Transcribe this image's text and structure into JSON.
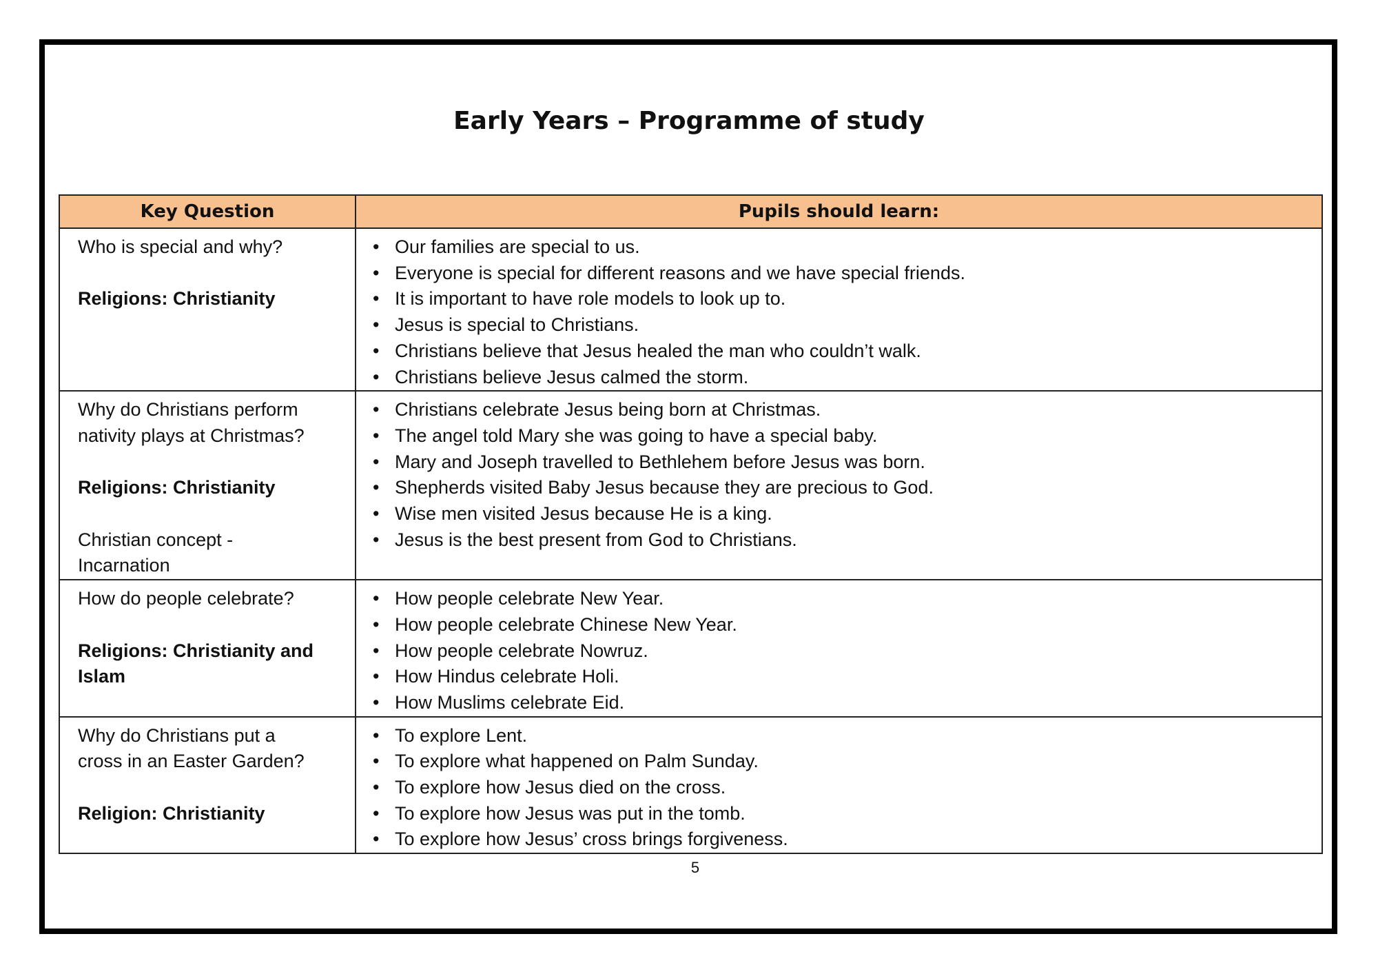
{
  "title": "Early Years – Programme of study",
  "table": {
    "headers": [
      "Key Question",
      "Pupils should learn:"
    ],
    "header_color": "#F8C08F",
    "rows": [
      {
        "question_lines": [
          "Who is special and why?"
        ],
        "religion_lines": [
          "Religions: Christianity"
        ],
        "concept_lines": [],
        "learn": [
          "Our families are special to us.",
          "Everyone is special for different reasons and we have special friends.",
          "It is important to have role models to look up to.",
          "Jesus is special to Christians.",
          "Christians believe that Jesus healed the man who couldn’t walk.",
          "Christians believe Jesus calmed the storm."
        ]
      },
      {
        "question_lines": [
          "Why do Christians perform",
          "nativity plays at Christmas?"
        ],
        "religion_lines": [
          "Religions: Christianity"
        ],
        "concept_lines": [
          "Christian concept -",
          "Incarnation"
        ],
        "learn": [
          "Christians celebrate Jesus being born at Christmas.",
          "The angel told Mary she was going to have a special baby.",
          "Mary and Joseph travelled to Bethlehem before Jesus was born.",
          "Shepherds visited Baby Jesus because they are precious to God.",
          "Wise men visited Jesus because He is a king.",
          "Jesus is the best present from God to Christians."
        ]
      },
      {
        "question_lines": [
          "How do people celebrate?"
        ],
        "religion_lines": [
          "Religions: Christianity and",
          "Islam"
        ],
        "concept_lines": [],
        "learn": [
          "How people celebrate New Year.",
          "How people celebrate Chinese New Year.",
          "How people celebrate Nowruz.",
          "How Hindus celebrate Holi.",
          "How Muslims celebrate Eid."
        ]
      },
      {
        "question_lines": [
          "Why do Christians put a",
          "cross in an Easter Garden?"
        ],
        "religion_lines": [
          "Religion: Christianity"
        ],
        "concept_lines": [],
        "learn": [
          "To explore Lent.",
          "To explore what happened on Palm Sunday.",
          "To explore how Jesus died on the cross.",
          "To explore how Jesus was put in the tomb.",
          "To explore how Jesus’ cross brings forgiveness."
        ]
      }
    ]
  },
  "page_number": "5"
}
